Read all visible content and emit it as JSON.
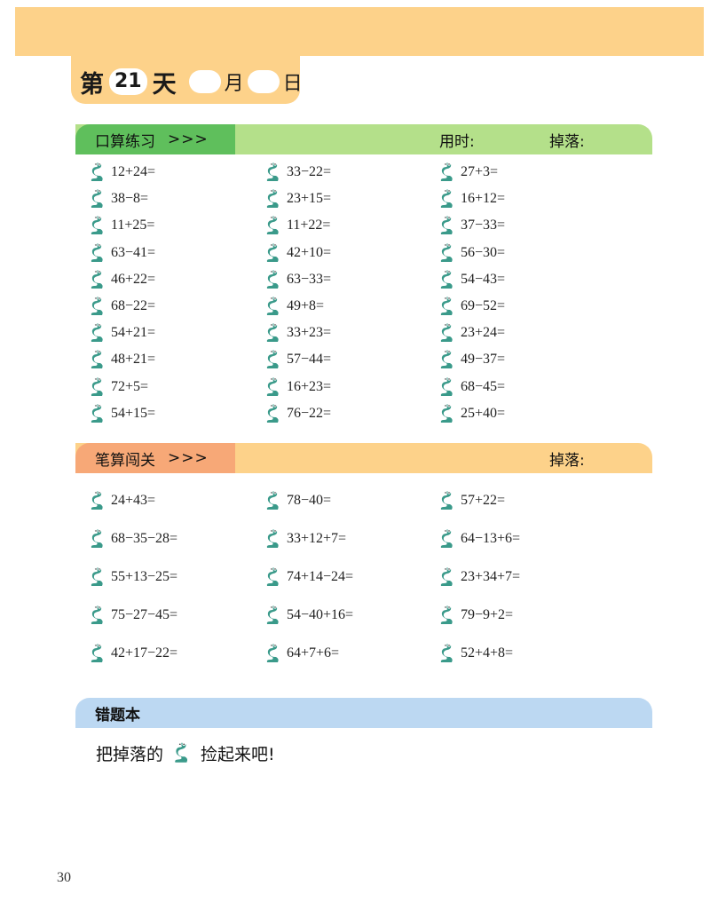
{
  "header": {
    "day_prefix": "第",
    "day_number": "21",
    "day_suffix": "天",
    "month_label": "月",
    "date_label": "日"
  },
  "oral": {
    "title": "口算练习",
    "arrows": ">>>",
    "time_label": "用时:",
    "drop_label": "掉落:",
    "columns": [
      [
        "12+24=",
        "38−8=",
        "11+25=",
        "63−41=",
        "46+22=",
        "68−22=",
        "54+21=",
        "48+21=",
        "72+5=",
        "54+15="
      ],
      [
        "33−22=",
        "23+15=",
        "11+22=",
        "42+10=",
        "63−33=",
        "49+8=",
        "33+23=",
        "57−44=",
        "16+23=",
        "76−22="
      ],
      [
        "27+3=",
        "16+12=",
        "37−33=",
        "56−30=",
        "54−43=",
        "69−52=",
        "23+24=",
        "49−37=",
        "68−45=",
        "25+40="
      ]
    ]
  },
  "written": {
    "title": "笔算闯关",
    "arrows": ">>>",
    "drop_label": "掉落:",
    "columns": [
      [
        "24+43=",
        "68−35−28=",
        "55+13−25=",
        "75−27−45=",
        "42+17−22="
      ],
      [
        "78−40=",
        "33+12+7=",
        "74+14−24=",
        "54−40+16=",
        "64+7+6="
      ],
      [
        "57+22=",
        "64−13+6=",
        "23+34+7=",
        "79−9+2=",
        "52+4+8="
      ]
    ]
  },
  "mistakes": {
    "title": "错题本",
    "note_before": "把掉落的",
    "note_after": "捡起来吧!"
  },
  "page_number": "30",
  "colors": {
    "header_orange": "#fdd28a",
    "oral_green": "#5fbf5c",
    "oral_light_green": "#b4e08a",
    "written_salmon": "#f7a877",
    "mistakes_blue": "#bcd8f2",
    "snake_green": "#3a9a8a"
  },
  "icons": {
    "problem_marker": "snake-icon"
  }
}
